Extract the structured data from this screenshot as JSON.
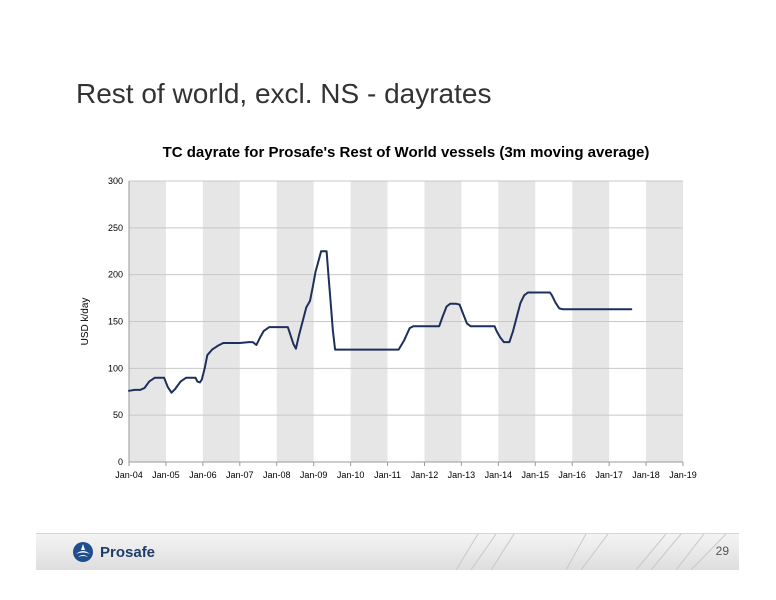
{
  "slide": {
    "title": "Rest of world, excl. NS - dayrates"
  },
  "footer": {
    "logo_text": "Prosafe",
    "page_number": "29"
  },
  "chart_data": {
    "type": "line",
    "title": "TC dayrate for Prosafe's Rest of World vessels (3m moving average)",
    "xlabel": "",
    "ylabel": "USD k/day",
    "categories": [
      "Jan-04",
      "Jan-05",
      "Jan-06",
      "Jan-07",
      "Jan-08",
      "Jan-09",
      "Jan-10",
      "Jan-11",
      "Jan-12",
      "Jan-13",
      "Jan-14",
      "Jan-15",
      "Jan-16",
      "Jan-17",
      "Jan-18",
      "Jan-19"
    ],
    "ylim": [
      0,
      300
    ],
    "yticks": [
      0,
      50,
      100,
      150,
      200,
      250,
      300
    ],
    "grid": true,
    "alternating_column_shading": true,
    "line_color": "#1f2f5c",
    "series": [
      {
        "name": "",
        "values": [
          [
            2004.0,
            76
          ],
          [
            2004.15,
            77
          ],
          [
            2004.3,
            77
          ],
          [
            2004.42,
            79
          ],
          [
            2004.55,
            86
          ],
          [
            2004.7,
            90
          ],
          [
            2004.95,
            90
          ],
          [
            2005.05,
            80
          ],
          [
            2005.15,
            74
          ],
          [
            2005.25,
            78
          ],
          [
            2005.4,
            86
          ],
          [
            2005.55,
            90
          ],
          [
            2005.8,
            90
          ],
          [
            2005.85,
            86
          ],
          [
            2005.92,
            85
          ],
          [
            2005.97,
            88
          ],
          [
            2006.05,
            100
          ],
          [
            2006.12,
            114
          ],
          [
            2006.25,
            120
          ],
          [
            2006.4,
            124
          ],
          [
            2006.55,
            127
          ],
          [
            2006.8,
            127
          ],
          [
            2007.0,
            127
          ],
          [
            2007.25,
            128
          ],
          [
            2007.35,
            128
          ],
          [
            2007.45,
            125
          ],
          [
            2007.55,
            133
          ],
          [
            2007.65,
            140
          ],
          [
            2007.8,
            144
          ],
          [
            2008.0,
            144
          ],
          [
            2008.3,
            144
          ],
          [
            2008.35,
            138
          ],
          [
            2008.45,
            126
          ],
          [
            2008.52,
            121
          ],
          [
            2008.6,
            135
          ],
          [
            2008.7,
            150
          ],
          [
            2008.8,
            165
          ],
          [
            2008.9,
            172
          ],
          [
            2008.97,
            186
          ],
          [
            2009.05,
            203
          ],
          [
            2009.12,
            213
          ],
          [
            2009.2,
            225
          ],
          [
            2009.35,
            225
          ],
          [
            2009.4,
            200
          ],
          [
            2009.45,
            175
          ],
          [
            2009.52,
            140
          ],
          [
            2009.58,
            120
          ],
          [
            2009.8,
            120
          ],
          [
            2010.0,
            120
          ],
          [
            2010.5,
            120
          ],
          [
            2011.0,
            120
          ],
          [
            2011.3,
            120
          ],
          [
            2011.45,
            130
          ],
          [
            2011.6,
            143
          ],
          [
            2011.7,
            145
          ],
          [
            2012.0,
            145
          ],
          [
            2012.4,
            145
          ],
          [
            2012.5,
            156
          ],
          [
            2012.6,
            166
          ],
          [
            2012.7,
            169
          ],
          [
            2012.85,
            169
          ],
          [
            2012.95,
            168
          ],
          [
            2013.05,
            158
          ],
          [
            2013.15,
            148
          ],
          [
            2013.25,
            145
          ],
          [
            2013.5,
            145
          ],
          [
            2013.7,
            145
          ],
          [
            2013.9,
            145
          ],
          [
            2013.95,
            140
          ],
          [
            2014.05,
            133
          ],
          [
            2014.15,
            128
          ],
          [
            2014.3,
            128
          ],
          [
            2014.4,
            140
          ],
          [
            2014.5,
            155
          ],
          [
            2014.6,
            170
          ],
          [
            2014.7,
            178
          ],
          [
            2014.8,
            181
          ],
          [
            2015.0,
            181
          ],
          [
            2015.4,
            181
          ],
          [
            2015.45,
            178
          ],
          [
            2015.55,
            170
          ],
          [
            2015.65,
            164
          ],
          [
            2015.75,
            163
          ],
          [
            2016.0,
            163
          ],
          [
            2016.5,
            163
          ],
          [
            2017.0,
            163
          ],
          [
            2017.6,
            163
          ]
        ]
      }
    ]
  }
}
